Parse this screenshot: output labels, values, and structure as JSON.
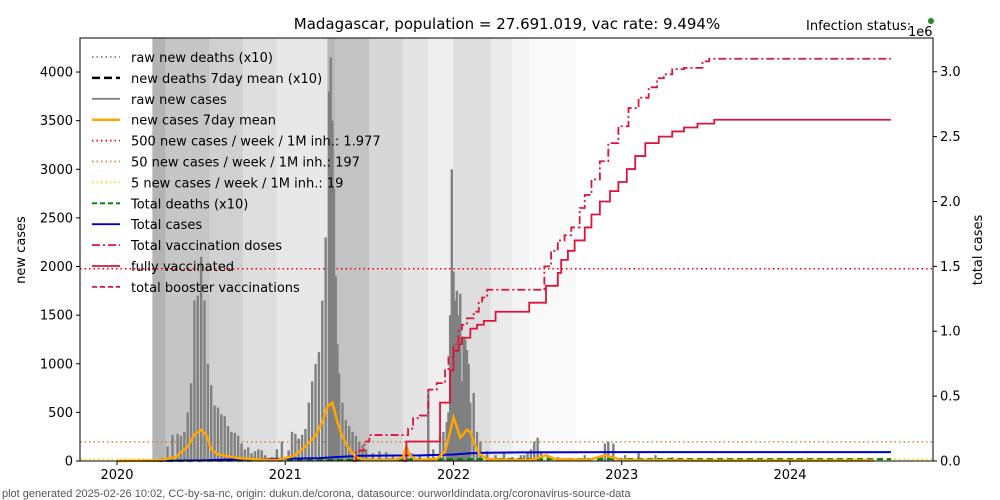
{
  "chart_data": {
    "type": "bar",
    "title": "Madagascar, population = 27.691.019, vac rate: 9.494%",
    "status_label": "Infection status:",
    "status_color": "#228b22",
    "right_axis_multiplier": "1e6",
    "xlabel": "",
    "ylabel": "new cases",
    "ylabel_right": "total cases",
    "ylim": [
      0,
      4350
    ],
    "ylim_right": [
      0,
      3.26
    ],
    "xlim": [
      2019.78,
      2024.85
    ],
    "x_ticks": [
      {
        "value": 2020,
        "label": "2020"
      },
      {
        "value": 2021,
        "label": "2021"
      },
      {
        "value": 2022,
        "label": "2022"
      },
      {
        "value": 2023,
        "label": "2023"
      },
      {
        "value": 2024,
        "label": "2024"
      }
    ],
    "y_ticks": [
      {
        "value": 0,
        "label": "0"
      },
      {
        "value": 500,
        "label": "500"
      },
      {
        "value": 1000,
        "label": "1000"
      },
      {
        "value": 1500,
        "label": "1500"
      },
      {
        "value": 2000,
        "label": "2000"
      },
      {
        "value": 2500,
        "label": "2500"
      },
      {
        "value": 3000,
        "label": "3000"
      },
      {
        "value": 3500,
        "label": "3500"
      },
      {
        "value": 4000,
        "label": "4000"
      }
    ],
    "y_ticks_right": [
      {
        "value": 0.0,
        "label": "0.0"
      },
      {
        "value": 0.5,
        "label": "0.5"
      },
      {
        "value": 1.0,
        "label": "1.0"
      },
      {
        "value": 1.5,
        "label": "1.5"
      },
      {
        "value": 2.0,
        "label": "2.0"
      },
      {
        "value": 2.5,
        "label": "2.5"
      },
      {
        "value": 3.0,
        "label": "3.0"
      }
    ],
    "legend_position": "top-left",
    "legend": [
      {
        "label": "raw new deaths (x10)",
        "color": "#808080",
        "style": "dotted"
      },
      {
        "label": "new deaths 7day mean (x10)",
        "color": "#000000",
        "style": "dashed-thick"
      },
      {
        "label": "raw new cases",
        "color": "#808080",
        "style": "solid"
      },
      {
        "label": "new cases 7day mean",
        "color": "#ffa500",
        "style": "solid-thick"
      },
      {
        "label": "500 new cases / week / 1M inh.: 1.977",
        "color": "#ff0000",
        "style": "dotted"
      },
      {
        "label": "50 new cases / week / 1M inh.: 197",
        "color": "#cd853f",
        "style": "dotted"
      },
      {
        "label": "5 new cases / week / 1M inh.: 19",
        "color": "#ffd700",
        "style": "dotted"
      },
      {
        "label": "Total deaths (x10)",
        "color": "#008000",
        "style": "dashed"
      },
      {
        "label": "Total cases",
        "color": "#0000cd",
        "style": "solid"
      },
      {
        "label": "Total vaccination doses",
        "color": "#dc143c",
        "style": "dashdot"
      },
      {
        "label": "fully vaccinated",
        "color": "#dc143c",
        "style": "solid"
      },
      {
        "label": "total booster vaccinations",
        "color": "#dc143c",
        "style": "dashed"
      }
    ],
    "thresholds": [
      {
        "name": "500-per-week",
        "value": 1977,
        "color": "#ff0000"
      },
      {
        "name": "50-per-week",
        "value": 197,
        "color": "#cd853f"
      },
      {
        "name": "5-per-week",
        "value": 19,
        "color": "#ffd700"
      }
    ],
    "shading": [
      {
        "x0": 2020.21,
        "x1": 2020.29,
        "gray": 180
      },
      {
        "x0": 2020.29,
        "x1": 2020.55,
        "gray": 198
      },
      {
        "x0": 2020.55,
        "x1": 2020.75,
        "gray": 208
      },
      {
        "x0": 2020.75,
        "x1": 2020.95,
        "gray": 222
      },
      {
        "x0": 2020.95,
        "x1": 2021.25,
        "gray": 232
      },
      {
        "x0": 2021.25,
        "x1": 2021.3,
        "gray": 185
      },
      {
        "x0": 2021.3,
        "x1": 2021.5,
        "gray": 195
      },
      {
        "x0": 2021.5,
        "x1": 2021.7,
        "gray": 215
      },
      {
        "x0": 2021.7,
        "x1": 2021.85,
        "gray": 228
      },
      {
        "x0": 2021.85,
        "x1": 2022.0,
        "gray": 238
      },
      {
        "x0": 2022.0,
        "x1": 2022.22,
        "gray": 222
      },
      {
        "x0": 2022.22,
        "x1": 2022.35,
        "gray": 235
      },
      {
        "x0": 2022.35,
        "x1": 2022.45,
        "gray": 244
      },
      {
        "x0": 2022.45,
        "x1": 2022.73,
        "gray": 249
      }
    ],
    "raw_new_cases": {
      "x": [
        2020.27,
        2020.3,
        2020.33,
        2020.36,
        2020.38,
        2020.4,
        2020.42,
        2020.44,
        2020.46,
        2020.48,
        2020.5,
        2020.52,
        2020.54,
        2020.56,
        2020.58,
        2020.6,
        2020.62,
        2020.64,
        2020.66,
        2020.68,
        2020.7,
        2020.72,
        2020.74,
        2020.76,
        2020.78,
        2020.8,
        2020.82,
        2020.84,
        2020.86,
        2020.88,
        2020.9,
        2020.92,
        2020.95,
        2020.98,
        2021.02,
        2021.04,
        2021.06,
        2021.08,
        2021.1,
        2021.12,
        2021.14,
        2021.16,
        2021.18,
        2021.2,
        2021.22,
        2021.24,
        2021.26,
        2021.27,
        2021.28,
        2021.29,
        2021.3,
        2021.31,
        2021.32,
        2021.34,
        2021.36,
        2021.38,
        2021.4,
        2021.42,
        2021.44,
        2021.46,
        2021.48,
        2021.52,
        2021.56,
        2021.6,
        2021.64,
        2021.7,
        2021.75,
        2021.8,
        2021.85,
        2021.88,
        2021.92,
        2021.94,
        2021.96,
        2021.97,
        2021.98,
        2021.99,
        2022.0,
        2022.01,
        2022.02,
        2022.03,
        2022.04,
        2022.05,
        2022.06,
        2022.07,
        2022.08,
        2022.09,
        2022.1,
        2022.12,
        2022.14,
        2022.16,
        2022.2,
        2022.25,
        2022.3,
        2022.35,
        2022.4,
        2022.42,
        2022.44,
        2022.46,
        2022.48,
        2022.5,
        2022.52,
        2022.56,
        2022.62,
        2022.7,
        2022.78,
        2022.86,
        2022.88,
        2022.9,
        2022.92,
        2022.95,
        2023.02,
        2023.1,
        2023.2,
        2023.3
      ],
      "values": [
        30,
        150,
        270,
        280,
        260,
        300,
        500,
        800,
        1650,
        1700,
        2100,
        1650,
        1000,
        780,
        570,
        550,
        480,
        460,
        360,
        300,
        290,
        260,
        180,
        120,
        140,
        80,
        100,
        120,
        110,
        60,
        20,
        40,
        120,
        200,
        110,
        300,
        280,
        230,
        270,
        330,
        600,
        820,
        1000,
        1120,
        1650,
        2300,
        3800,
        4150,
        3500,
        2800,
        1900,
        1200,
        900,
        600,
        420,
        360,
        300,
        260,
        200,
        160,
        120,
        80,
        100,
        90,
        60,
        40,
        80,
        60,
        700,
        120,
        260,
        300,
        400,
        500,
        1500,
        3000,
        1950,
        1650,
        1750,
        1500,
        1720,
        820,
        1280,
        1250,
        1140,
        1000,
        600,
        700,
        300,
        200,
        100,
        60,
        80,
        40,
        60,
        60,
        80,
        120,
        200,
        240,
        100,
        60,
        40,
        30,
        60,
        40,
        60,
        180,
        200,
        180,
        60,
        100,
        60,
        40
      ]
    },
    "new_cases_7day_mean": {
      "x": [
        2020.0,
        2020.25,
        2020.35,
        2020.42,
        2020.46,
        2020.5,
        2020.53,
        2020.56,
        2020.6,
        2020.65,
        2020.72,
        2020.8,
        2020.95,
        2021.05,
        2021.12,
        2021.18,
        2021.22,
        2021.25,
        2021.28,
        2021.31,
        2021.34,
        2021.38,
        2021.42,
        2021.47,
        2021.55,
        2021.65,
        2021.7,
        2021.72,
        2021.74,
        2021.78,
        2021.9,
        2021.95,
        2021.98,
        2022.0,
        2022.02,
        2022.04,
        2022.06,
        2022.08,
        2022.1,
        2022.12,
        2022.15,
        2022.2,
        2022.3,
        2022.45,
        2022.5,
        2022.55,
        2022.6,
        2022.8,
        2022.9,
        2023.0,
        2023.5,
        2024.5
      ],
      "values": [
        0,
        5,
        40,
        150,
        270,
        320,
        270,
        120,
        70,
        50,
        30,
        20,
        10,
        50,
        150,
        260,
        400,
        560,
        600,
        400,
        250,
        120,
        40,
        10,
        10,
        10,
        40,
        150,
        60,
        10,
        20,
        100,
        300,
        450,
        350,
        240,
        280,
        320,
        300,
        200,
        80,
        20,
        10,
        10,
        30,
        60,
        20,
        10,
        60,
        10,
        5,
        5
      ]
    },
    "total_cases_millions": {
      "x": [
        2020.0,
        2020.3,
        2020.5,
        2020.7,
        2021.0,
        2021.2,
        2021.3,
        2021.45,
        2021.6,
        2021.8,
        2022.0,
        2022.1,
        2022.2,
        2022.4,
        2023.0,
        2024.6
      ],
      "values": [
        0.0,
        0.002,
        0.005,
        0.013,
        0.017,
        0.022,
        0.03,
        0.04,
        0.042,
        0.043,
        0.05,
        0.06,
        0.064,
        0.066,
        0.068,
        0.068
      ]
    },
    "total_deaths_x10_millions": {
      "x": [
        2020.0,
        2021.0,
        2021.4,
        2022.0,
        2024.6
      ],
      "values": [
        0.0,
        0.003,
        0.01,
        0.014,
        0.014
      ]
    },
    "total_vaccination_doses_millions": {
      "x": [
        2021.4,
        2021.42,
        2021.47,
        2021.5,
        2021.6,
        2021.65,
        2021.7,
        2021.73,
        2021.76,
        2021.8,
        2021.85,
        2021.9,
        2021.95,
        2021.97,
        2022.0,
        2022.03,
        2022.05,
        2022.08,
        2022.12,
        2022.15,
        2022.17,
        2022.2,
        2022.3,
        2022.4,
        2022.52,
        2022.54,
        2022.58,
        2022.62,
        2022.66,
        2022.7,
        2022.75,
        2022.78,
        2022.82,
        2022.87,
        2022.92,
        2022.98,
        2023.04,
        2023.1,
        2023.16,
        2023.21,
        2023.25,
        2023.3,
        2023.37,
        2023.48,
        2023.52,
        2024.6
      ],
      "values": [
        0.0,
        0.08,
        0.15,
        0.2,
        0.2,
        0.2,
        0.2,
        0.25,
        0.33,
        0.35,
        0.55,
        0.6,
        0.7,
        0.8,
        0.9,
        1.0,
        1.05,
        1.1,
        1.15,
        1.22,
        1.26,
        1.32,
        1.32,
        1.32,
        1.32,
        1.5,
        1.62,
        1.7,
        1.74,
        1.8,
        1.95,
        2.05,
        2.17,
        2.31,
        2.45,
        2.58,
        2.72,
        2.8,
        2.88,
        2.95,
        2.98,
        3.02,
        3.03,
        3.08,
        3.1,
        3.1
      ]
    },
    "fully_vaccinated_millions": {
      "x": [
        2021.7,
        2021.72,
        2021.88,
        2021.92,
        2021.98,
        2022.0,
        2022.03,
        2022.05,
        2022.1,
        2022.14,
        2022.18,
        2022.25,
        2022.35,
        2022.45,
        2022.52,
        2022.55,
        2022.62,
        2022.64,
        2022.68,
        2022.72,
        2022.78,
        2022.82,
        2022.87,
        2022.93,
        2022.98,
        2023.03,
        2023.08,
        2023.14,
        2023.22,
        2023.3,
        2023.37,
        2023.45,
        2023.55,
        2024.6
      ],
      "values": [
        0.0,
        0.15,
        0.15,
        0.45,
        0.7,
        0.85,
        0.9,
        0.95,
        1.02,
        1.05,
        1.08,
        1.15,
        1.15,
        1.22,
        1.22,
        1.35,
        1.45,
        1.55,
        1.62,
        1.7,
        1.8,
        1.9,
        2.0,
        2.08,
        2.15,
        2.25,
        2.35,
        2.45,
        2.5,
        2.54,
        2.57,
        2.6,
        2.63,
        2.63
      ]
    }
  },
  "footer": "plot generated 2025-02-26 10:02, CC-by-sa-nc, origin: dukun.de/corona, datasource: ourworldindata.org/coronavirus-source-data"
}
